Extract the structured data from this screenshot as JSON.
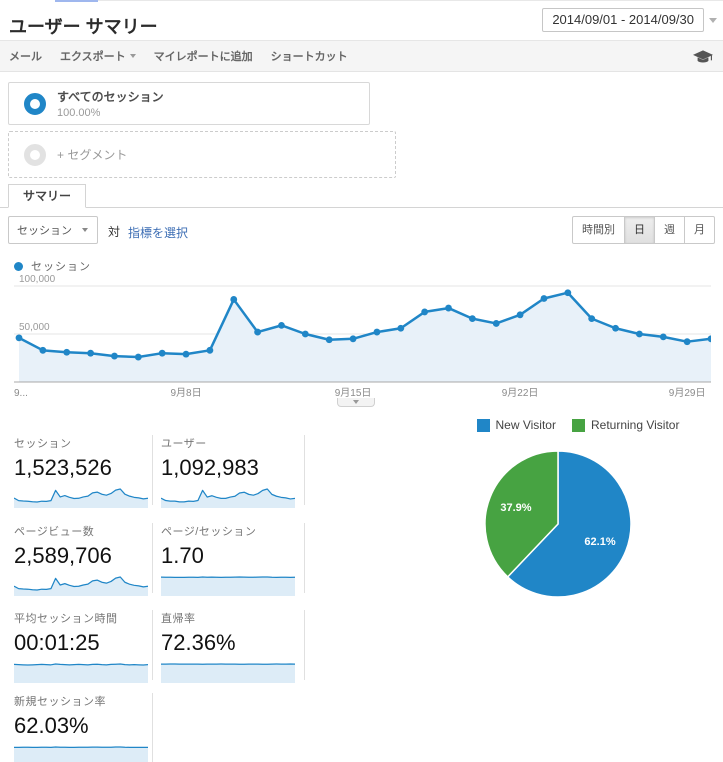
{
  "colors": {
    "accent_blue": "#2086c7",
    "pie_green": "#47a342",
    "link_blue": "#3d6eb4",
    "spark_fill": "#ddecf7",
    "area_fill": "#e8f1f9"
  },
  "header": {
    "title": "ユーザー サマリー",
    "date_range": "2014/09/01 - 2014/09/30"
  },
  "toolbar": {
    "items": [
      "メール",
      "エクスポート",
      "マイレポートに追加",
      "ショートカット"
    ]
  },
  "segments": {
    "all": {
      "label": "すべてのセッション",
      "percent": "100.00%"
    },
    "add_label": "+ セグメント"
  },
  "tab": {
    "label": "サマリー"
  },
  "controls": {
    "metric_select": "セッション",
    "vs": "対",
    "compare_link": "指標を選択",
    "granularity": [
      "時間別",
      "日",
      "週",
      "月"
    ],
    "active_granularity": "日"
  },
  "chart_data": [
    {
      "type": "line",
      "title": "セッション",
      "legend": [
        "セッション"
      ],
      "legend_position": "top-left",
      "x_unit": "day of 2014-09",
      "x": [
        1,
        2,
        3,
        4,
        5,
        6,
        7,
        8,
        9,
        10,
        11,
        12,
        13,
        14,
        15,
        16,
        17,
        18,
        19,
        20,
        21,
        22,
        23,
        24,
        25,
        26,
        27,
        28,
        29,
        30
      ],
      "series": [
        {
          "name": "セッション",
          "values": [
            46000,
            33000,
            31000,
            30000,
            27000,
            26000,
            30000,
            29000,
            33000,
            86000,
            52000,
            59000,
            50000,
            44000,
            45000,
            52000,
            56000,
            73000,
            77000,
            66000,
            61000,
            70000,
            87000,
            93000,
            66000,
            56000,
            50000,
            47000,
            42000,
            45000
          ]
        }
      ],
      "ylim": [
        0,
        100000
      ],
      "yticks": [
        {
          "value": 50000,
          "label": "50,000"
        },
        {
          "value": 100000,
          "label": "100,000"
        }
      ],
      "xticks": [
        {
          "day": 1,
          "label": "9..."
        },
        {
          "day": 8,
          "label": "9月8日"
        },
        {
          "day": 15,
          "label": "9月15日"
        },
        {
          "day": 22,
          "label": "9月22日"
        },
        {
          "day": 29,
          "label": "9月29日"
        }
      ],
      "grid": true
    },
    {
      "type": "pie",
      "legend_position": "top",
      "slices": [
        {
          "label": "New Visitor",
          "value": 62.1,
          "display": "62.1%",
          "color": "#2086c7"
        },
        {
          "label": "Returning Visitor",
          "value": 37.9,
          "display": "37.9%",
          "color": "#47a342"
        }
      ]
    }
  ],
  "metrics": [
    {
      "label": "セッション",
      "value": "1,523,526",
      "sparkline": [
        46,
        33,
        31,
        30,
        27,
        26,
        30,
        29,
        33,
        86,
        52,
        59,
        50,
        44,
        45,
        52,
        56,
        73,
        77,
        66,
        61,
        70,
        87,
        93,
        66,
        56,
        50,
        47,
        42,
        45
      ]
    },
    {
      "label": "ユーザー",
      "value": "1,092,983",
      "sparkline": [
        33,
        24,
        22,
        22,
        19,
        19,
        22,
        21,
        24,
        62,
        37,
        42,
        36,
        32,
        32,
        37,
        40,
        52,
        55,
        47,
        44,
        50,
        62,
        67,
        47,
        40,
        36,
        34,
        30,
        32
      ]
    },
    {
      "label": "ページビュー数",
      "value": "2,589,706",
      "sparkline": [
        78,
        56,
        53,
        51,
        46,
        44,
        51,
        49,
        56,
        146,
        88,
        100,
        85,
        75,
        77,
        88,
        95,
        124,
        131,
        112,
        104,
        119,
        148,
        158,
        112,
        95,
        85,
        80,
        71,
        77
      ]
    },
    {
      "label": "ページ/セッション",
      "value": "1.70",
      "sparkline": [
        1.71,
        1.7,
        1.7,
        1.69,
        1.68,
        1.69,
        1.7,
        1.7,
        1.69,
        1.72,
        1.7,
        1.71,
        1.7,
        1.69,
        1.7,
        1.7,
        1.71,
        1.72,
        1.71,
        1.7,
        1.7,
        1.71,
        1.72,
        1.72,
        1.7,
        1.69,
        1.7,
        1.7,
        1.69,
        1.7
      ]
    },
    {
      "label": "平均セッション時間",
      "value": "00:01:25",
      "sparkline": [
        86,
        85,
        84,
        83,
        84,
        85,
        86,
        85,
        84,
        88,
        86,
        85,
        84,
        85,
        86,
        85,
        84,
        86,
        87,
        85,
        84,
        86,
        87,
        88,
        85,
        84,
        85,
        84,
        83,
        85
      ]
    },
    {
      "label": "直帰率",
      "value": "72.36%",
      "sparkline": [
        72.1,
        72.4,
        72.6,
        72.8,
        72.5,
        72.3,
        72.4,
        72.2,
        72.5,
        71.8,
        72.3,
        72.1,
        72.4,
        72.6,
        72.4,
        72.2,
        72.3,
        71.9,
        72.0,
        72.3,
        72.5,
        72.2,
        71.9,
        71.8,
        72.4,
        72.6,
        72.5,
        72.4,
        72.7,
        72.5
      ]
    },
    {
      "label": "新規セッション率",
      "value": "62.03%",
      "sparkline": [
        61.8,
        62.0,
        62.2,
        62.1,
        61.9,
        62.0,
        62.3,
        62.1,
        61.9,
        63.0,
        62.4,
        62.2,
        62.0,
        61.8,
        62.1,
        62.2,
        62.4,
        62.8,
        62.6,
        62.3,
        62.1,
        62.4,
        62.9,
        63.1,
        62.2,
        61.9,
        62.0,
        61.8,
        61.7,
        62.0
      ]
    }
  ]
}
